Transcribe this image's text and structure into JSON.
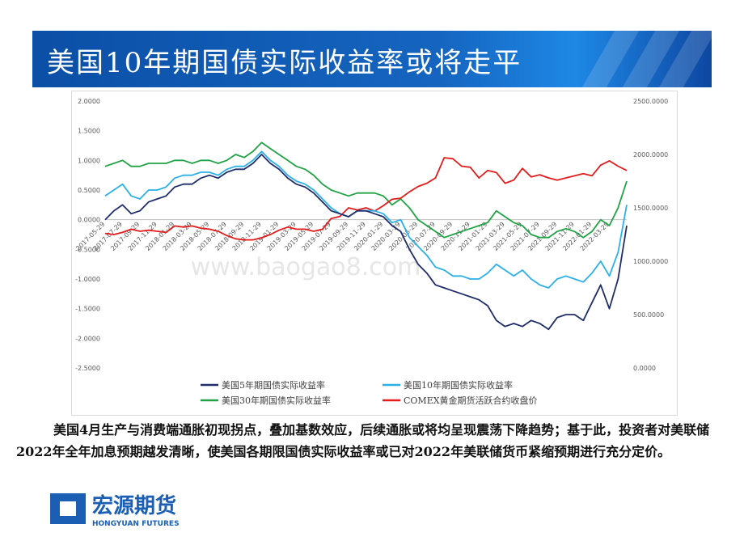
{
  "header": {
    "title": "美国10年期国债实际收益率或将走平"
  },
  "chart_data": {
    "type": "line",
    "categories": [
      "2017-05-29",
      null,
      "2017-07-29",
      null,
      "2017-09-29",
      null,
      "2017-11-29",
      null,
      "2018-01-29",
      null,
      "2018-03-29",
      null,
      "2018-05-29",
      null,
      "2018-07-29",
      null,
      "2018-09-29",
      null,
      "2018-11-29",
      null,
      "2019-01-29",
      null,
      "2019-03-29",
      null,
      "2019-05-29",
      null,
      "2019-07-29",
      null,
      "2019-09-29",
      null,
      "2019-11-29",
      null,
      "2020-01-29",
      null,
      "2020-03-29",
      null,
      "2020-05-29",
      null,
      "2020-07-29",
      null,
      "2020-09-29",
      null,
      "2020-11-29",
      null,
      "2021-01-29",
      null,
      "2021-03-29",
      null,
      "2021-05-29",
      null,
      "2021-07-29",
      null,
      "2021-09-29",
      null,
      "2021-11-29",
      null,
      "2022-01-29",
      null,
      "2022-03-29",
      null,
      null
    ],
    "series": [
      {
        "name": "美国5年期国债实际收益率",
        "color": "#1f2d6b",
        "values": [
          0.0,
          0.15,
          0.25,
          0.1,
          0.15,
          0.3,
          0.35,
          0.4,
          0.55,
          0.6,
          0.6,
          0.7,
          0.75,
          0.7,
          0.8,
          0.85,
          0.85,
          0.95,
          1.1,
          0.95,
          0.85,
          0.7,
          0.6,
          0.55,
          0.45,
          0.3,
          0.15,
          0.1,
          0.05,
          0.15,
          0.15,
          0.1,
          0.05,
          -0.1,
          -0.2,
          -0.5,
          -0.75,
          -0.9,
          -1.1,
          -1.15,
          -1.2,
          -1.25,
          -1.3,
          -1.35,
          -1.45,
          -1.7,
          -1.8,
          -1.75,
          -1.8,
          -1.7,
          -1.75,
          -1.85,
          -1.65,
          -1.6,
          -1.6,
          -1.7,
          -1.4,
          -1.1,
          -1.5,
          -1.0,
          -0.1
        ]
      },
      {
        "name": "美国10年期国债实际收益率",
        "color": "#2bb0e8",
        "values": [
          0.4,
          0.5,
          0.6,
          0.4,
          0.35,
          0.5,
          0.5,
          0.55,
          0.7,
          0.75,
          0.75,
          0.8,
          0.8,
          0.75,
          0.85,
          0.9,
          0.9,
          1.0,
          1.15,
          1.0,
          0.9,
          0.75,
          0.65,
          0.6,
          0.5,
          0.35,
          0.2,
          0.1,
          0.05,
          0.15,
          0.15,
          0.15,
          0.1,
          -0.05,
          0.0,
          -0.3,
          -0.45,
          -0.6,
          -0.8,
          -0.85,
          -0.95,
          -0.95,
          -1.0,
          -1.0,
          -0.9,
          -0.75,
          -0.85,
          -0.95,
          -0.85,
          -1.0,
          -1.1,
          -1.15,
          -1.0,
          -0.95,
          -1.0,
          -1.05,
          -0.9,
          -0.7,
          -0.95,
          -0.55,
          0.25
        ]
      },
      {
        "name": "美国30年期国债实际收益率",
        "color": "#21a345",
        "values": [
          0.9,
          0.95,
          1.0,
          0.9,
          0.9,
          0.95,
          0.95,
          0.95,
          1.0,
          1.0,
          0.95,
          1.0,
          1.0,
          0.95,
          1.0,
          1.1,
          1.05,
          1.15,
          1.3,
          1.2,
          1.1,
          1.0,
          0.9,
          0.85,
          0.75,
          0.6,
          0.5,
          0.45,
          0.4,
          0.45,
          0.45,
          0.45,
          0.4,
          0.25,
          0.35,
          0.2,
          0.0,
          -0.1,
          -0.2,
          -0.3,
          -0.25,
          -0.2,
          -0.15,
          -0.1,
          -0.05,
          0.15,
          0.05,
          -0.05,
          -0.1,
          -0.25,
          -0.3,
          -0.3,
          -0.2,
          -0.15,
          -0.2,
          -0.3,
          -0.2,
          0.0,
          -0.1,
          0.2,
          0.65
        ]
      },
      {
        "name": "COMEX黄金期货活跃合约收盘价",
        "color": "#e51c1c",
        "axis": "y2",
        "values": [
          1260,
          1250,
          1270,
          1300,
          1280,
          1290,
          1280,
          1270,
          1330,
          1320,
          1330,
          1310,
          1300,
          1280,
          1240,
          1210,
          1200,
          1200,
          1220,
          1250,
          1290,
          1320,
          1300,
          1300,
          1280,
          1300,
          1400,
          1420,
          1500,
          1480,
          1500,
          1470,
          1520,
          1580,
          1590,
          1650,
          1700,
          1730,
          1780,
          1970,
          1960,
          1890,
          1880,
          1780,
          1850,
          1830,
          1730,
          1760,
          1870,
          1790,
          1810,
          1780,
          1760,
          1780,
          1800,
          1820,
          1800,
          1900,
          1940,
          1890,
          1850
        ]
      }
    ],
    "ylim": [
      -2.5,
      2.0
    ],
    "yticks": [
      {
        "value": -2.5,
        "label": "-2.5000"
      },
      {
        "value": -2.0,
        "label": "-2.0000"
      },
      {
        "value": -1.5,
        "label": "-1.5000"
      },
      {
        "value": -1.0,
        "label": "-1.0000"
      },
      {
        "value": -0.5,
        "label": "-0.5000"
      },
      {
        "value": 0.0,
        "label": "0.0000"
      },
      {
        "value": 0.5,
        "label": "0.5000"
      },
      {
        "value": 1.0,
        "label": "1.0000"
      },
      {
        "value": 1.5,
        "label": "1.5000"
      },
      {
        "value": 2.0,
        "label": "2.0000"
      }
    ],
    "y2lim": [
      0,
      2500
    ],
    "y2ticks": [
      {
        "value": 0,
        "label": "0.0000"
      },
      {
        "value": 500,
        "label": "500.0000"
      },
      {
        "value": 1000,
        "label": "1000.0000"
      },
      {
        "value": 1500,
        "label": "1500.0000"
      },
      {
        "value": 2000,
        "label": "2000.0000"
      },
      {
        "value": 2500,
        "label": "2500.0000"
      }
    ],
    "legend": "bottom",
    "watermark": "www.baogao8.com"
  },
  "body": {
    "text": "美国4月生产与消费端通胀初现拐点，叠加基数效应，后续通胀或将均呈现震荡下降趋势；基于此，投资者对美联储2022年全年加息预期越发清晰，使美国各期限国债实际收益率或已对2022年美联储货币紧缩预期进行充分定价。"
  },
  "logo": {
    "name": "宏源期货",
    "english": "HONGYUAN FUTURES"
  }
}
